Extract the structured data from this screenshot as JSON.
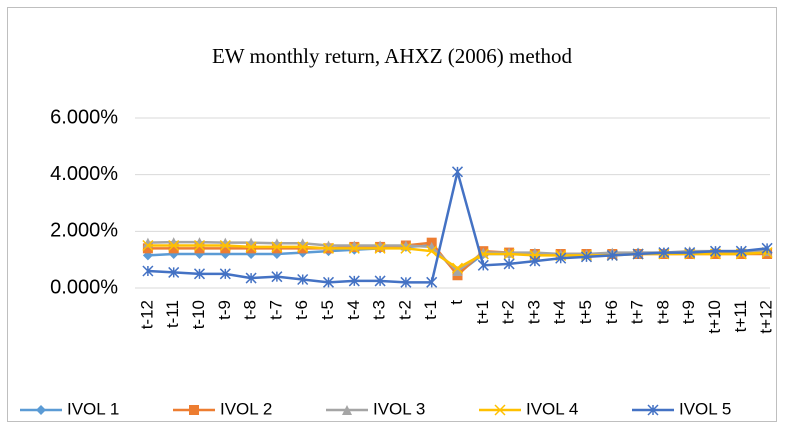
{
  "chart_data": {
    "type": "line",
    "title": "EW monthly return, AHXZ (2006) method",
    "categories": [
      "t-12",
      "t-11",
      "t-10",
      "t-9",
      "t-8",
      "t-7",
      "t-6",
      "t-5",
      "t-4",
      "t-3",
      "t-2",
      "t-1",
      "t",
      "t+1",
      "t+2",
      "t+3",
      "t+4",
      "t+5",
      "t+6",
      "t+7",
      "t+8",
      "t+9",
      "t+10",
      "t+11",
      "t+12"
    ],
    "series": [
      {
        "name": "IVOL 1",
        "color": "#5b9bd5",
        "marker": "diamond",
        "values": [
          1.15,
          1.2,
          1.2,
          1.2,
          1.2,
          1.2,
          1.25,
          1.3,
          1.35,
          1.4,
          1.45,
          1.5,
          0.5,
          1.2,
          1.2,
          1.2,
          1.2,
          1.2,
          1.2,
          1.25,
          1.25,
          1.25,
          1.25,
          1.25,
          1.3
        ]
      },
      {
        "name": "IVOL 2",
        "color": "#ed7d31",
        "marker": "square",
        "values": [
          1.4,
          1.4,
          1.4,
          1.4,
          1.4,
          1.4,
          1.4,
          1.4,
          1.45,
          1.45,
          1.5,
          1.6,
          0.45,
          1.3,
          1.25,
          1.2,
          1.2,
          1.2,
          1.2,
          1.2,
          1.2,
          1.2,
          1.2,
          1.2,
          1.2
        ]
      },
      {
        "name": "IVOL 3",
        "color": "#a5a5a5",
        "marker": "triangle",
        "values": [
          1.6,
          1.62,
          1.62,
          1.6,
          1.6,
          1.58,
          1.58,
          1.5,
          1.5,
          1.5,
          1.5,
          1.45,
          0.6,
          1.25,
          1.25,
          1.25,
          1.2,
          1.2,
          1.25,
          1.25,
          1.25,
          1.3,
          1.3,
          1.3,
          1.3
        ]
      },
      {
        "name": "IVOL 4",
        "color": "#ffc000",
        "marker": "x",
        "values": [
          1.5,
          1.5,
          1.5,
          1.5,
          1.45,
          1.45,
          1.45,
          1.4,
          1.4,
          1.4,
          1.4,
          1.3,
          0.7,
          1.2,
          1.2,
          1.15,
          1.15,
          1.15,
          1.15,
          1.2,
          1.2,
          1.2,
          1.2,
          1.2,
          1.25
        ]
      },
      {
        "name": "IVOL 5",
        "color": "#4472c4",
        "marker": "asterisk",
        "values": [
          0.6,
          0.55,
          0.5,
          0.5,
          0.35,
          0.4,
          0.3,
          0.2,
          0.25,
          0.25,
          0.2,
          0.2,
          4.1,
          0.8,
          0.85,
          0.95,
          1.05,
          1.1,
          1.15,
          1.2,
          1.25,
          1.25,
          1.3,
          1.3,
          1.4
        ]
      }
    ],
    "ylim": [
      0,
      6
    ],
    "yticks": [
      {
        "value": 0,
        "label": "0.000%"
      },
      {
        "value": 2,
        "label": "2.000%"
      },
      {
        "value": 4,
        "label": "4.000%"
      },
      {
        "value": 6,
        "label": "6.000%"
      }
    ],
    "grid": true,
    "legend": "bottom"
  }
}
